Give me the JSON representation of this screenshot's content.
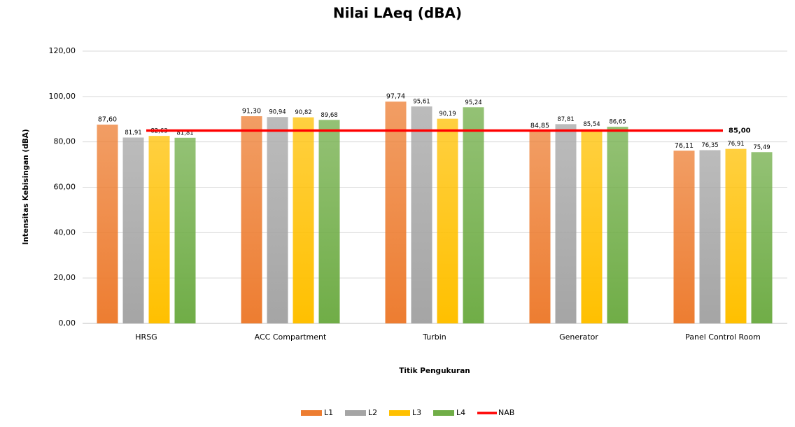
{
  "chart_data": {
    "type": "bar",
    "title": "Nilai LAeq (dBA)",
    "x_label": "Titik Pengukuran",
    "y_label": "Intensitas Kebisingan (dBA)",
    "categories": [
      "HRSG",
      "ACC Compartment",
      "Turbin",
      "Generator",
      "Panel Control Room"
    ],
    "series": [
      {
        "name": "L1",
        "color": "#ed7d31",
        "values": [
          87.6,
          91.3,
          97.74,
          84.85,
          76.11
        ],
        "value_labels": [
          "87,60",
          "91,30",
          "97,74",
          "84,85",
          "76,11"
        ]
      },
      {
        "name": "L2",
        "color": "#a5a5a5",
        "values": [
          81.91,
          90.94,
          95.61,
          87.81,
          76.35
        ],
        "value_labels": [
          "81,91",
          "90,94",
          "95,61",
          "87,81",
          "76,35"
        ]
      },
      {
        "name": "L3",
        "color": "#ffc000",
        "values": [
          82.63,
          90.82,
          90.19,
          85.54,
          76.91
        ],
        "value_labels": [
          "82,63",
          "90,82",
          "90,19",
          "85,54",
          "76,91"
        ]
      },
      {
        "name": "L4",
        "color": "#70ad47",
        "values": [
          81.81,
          89.68,
          95.24,
          86.65,
          75.49
        ],
        "value_labels": [
          "81,81",
          "89,68",
          "95,24",
          "86,65",
          "75,49"
        ]
      },
      {
        "name": "NAB",
        "color": "#ff0000",
        "type": "line",
        "values": [
          85,
          85,
          85,
          85,
          85
        ],
        "value_labels": [
          null,
          null,
          null,
          null,
          "85,00"
        ]
      }
    ],
    "ylim": [
      0,
      120
    ],
    "yticks": [
      {
        "value": 0,
        "label": "0,00"
      },
      {
        "value": 20,
        "label": "20,00"
      },
      {
        "value": 40,
        "label": "40,00"
      },
      {
        "value": 60,
        "label": "60,00"
      },
      {
        "value": 80,
        "label": "80,00"
      },
      {
        "value": 100,
        "label": "100,00"
      },
      {
        "value": 120,
        "label": "120,00"
      }
    ],
    "grid": true,
    "legend": "bottom"
  }
}
